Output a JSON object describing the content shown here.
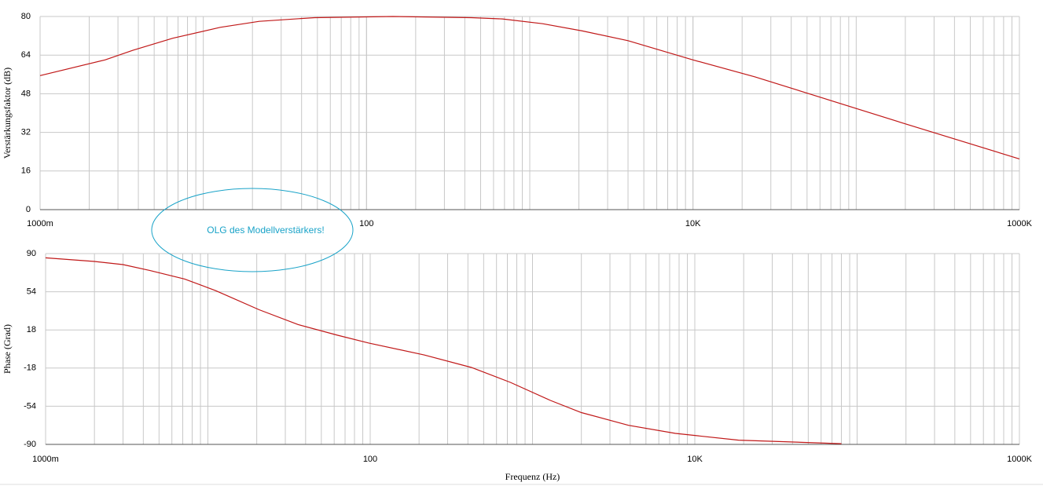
{
  "chart_data": [
    {
      "type": "line",
      "ylabel": "Verstärkungsfaktor (dB)",
      "xscale": "log",
      "grid": true,
      "minor_grid": true,
      "xlim": [
        1,
        1000000
      ],
      "xticks": [
        {
          "value": 1,
          "label": "1000m"
        },
        100,
        {
          "value": 10000,
          "label": "10K"
        },
        {
          "value": 1000000,
          "label": "1000K"
        }
      ],
      "ylim": [
        0,
        80
      ],
      "yticks": [
        0,
        16,
        32,
        48,
        64,
        80
      ],
      "x": [
        1,
        2.5,
        3.7,
        6.5,
        12.7,
        22,
        48,
        145,
        440,
        680,
        1200,
        2100,
        4000,
        10000,
        24000,
        64000,
        190000,
        1000000
      ],
      "series": [
        {
          "color": "#c01818",
          "values": [
            55.5,
            62,
            66,
            71,
            75.5,
            78,
            79.5,
            80,
            79.5,
            79,
            77,
            74,
            70,
            62,
            55,
            46,
            36,
            21
          ]
        }
      ],
      "annotations": [
        "OLG des Modellverstärkers!"
      ]
    },
    {
      "type": "line",
      "ylabel": "Phase (Grad)",
      "xlabel": "Frequenz (Hz)",
      "xscale": "log",
      "grid": true,
      "minor_grid": true,
      "xlim": [
        1,
        1000000
      ],
      "xticks": [
        {
          "value": 1,
          "label": "1000m"
        },
        100,
        {
          "value": 10000,
          "label": "10K"
        },
        {
          "value": 1000000,
          "label": "1000K"
        }
      ],
      "ylim": [
        -90,
        90
      ],
      "yticks": [
        -90,
        -54,
        -18,
        18,
        54,
        90
      ],
      "x": [
        1,
        2,
        3,
        4.4,
        7.2,
        11.2,
        20.7,
        36,
        63,
        98,
        215,
        420,
        730,
        1290,
        2000,
        3900,
        7600,
        18600,
        80000
      ],
      "series": [
        {
          "color": "#c01818",
          "values": [
            86,
            82.6,
            79.6,
            74,
            66,
            55,
            37,
            23,
            13,
            5.6,
            -5.6,
            -17.4,
            -31.5,
            -48.5,
            -60,
            -72,
            -79.6,
            -86,
            -89.3
          ]
        }
      ]
    }
  ]
}
